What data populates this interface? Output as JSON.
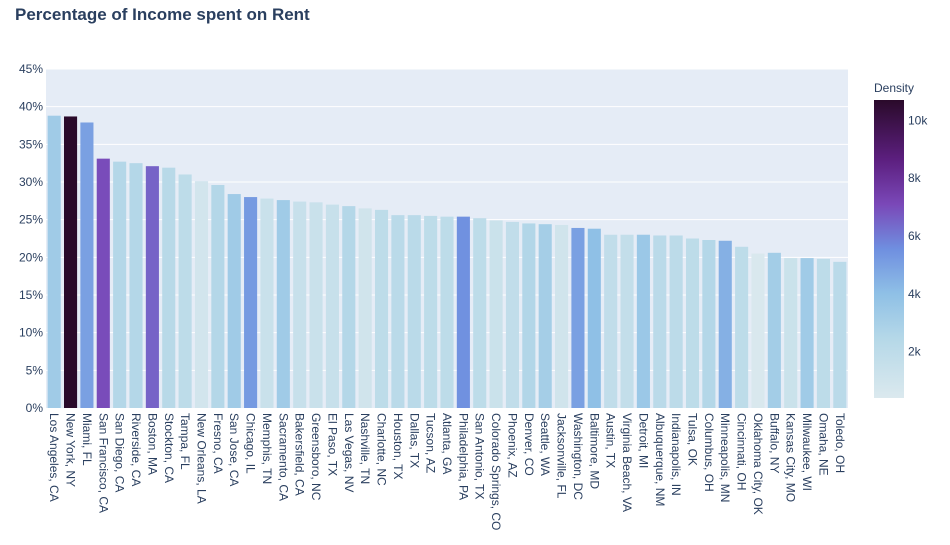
{
  "chart_data": {
    "type": "bar",
    "title": "Percentage of Income spent on Rent",
    "xlabel": "",
    "ylabel": "",
    "ylim": [
      0,
      45
    ],
    "yticks": [
      0,
      5,
      10,
      15,
      20,
      25,
      30,
      35,
      40,
      45
    ],
    "ytick_labels": [
      "0%",
      "5%",
      "10%",
      "15%",
      "20%",
      "25%",
      "30%",
      "35%",
      "40%",
      "45%"
    ],
    "grid": true,
    "legend": "none",
    "colorbar": {
      "title": "Density",
      "range": [
        400,
        10700
      ],
      "ticks": [
        2000,
        4000,
        6000,
        8000,
        10000
      ],
      "tick_labels": [
        "2k",
        "4k",
        "6k",
        "8k",
        "10k"
      ],
      "colorscale": [
        [
          0.0,
          "#dbe9ee"
        ],
        [
          0.2,
          "#b5d8e8"
        ],
        [
          0.35,
          "#8fc0e6"
        ],
        [
          0.5,
          "#6f8fe0"
        ],
        [
          0.65,
          "#7a48b8"
        ],
        [
          0.8,
          "#5c1f7f"
        ],
        [
          1.0,
          "#2a0a2a"
        ]
      ]
    },
    "categories": [
      "Los Angeles, CA",
      "New York, NY",
      "Miami, FL",
      "San Francisco, CA",
      "San Diego, CA",
      "Riverside, CA",
      "Boston, MA",
      "Stockton, CA",
      "Tampa, FL",
      "New Orleans, LA",
      "Fresno, CA",
      "San Jose, CA",
      "Chicago, IL",
      "Memphis, TN",
      "Sacramento, CA",
      "Bakersfield, CA",
      "Greensboro, NC",
      "El Paso, TX",
      "Las Vegas, NV",
      "Nashville, TN",
      "Charlotte, NC",
      "Houston, TX",
      "Dallas, TX",
      "Tucson, AZ",
      "Atlanta, GA",
      "Philadelphia, PA",
      "San Antonio, TX",
      "Colorado Springs, CO",
      "Phoenix, AZ",
      "Denver, CO",
      "Seattle, WA",
      "Jacksonville, FL",
      "Washington, DC",
      "Baltimore, MD",
      "Austin, TX",
      "Virginia Beach, VA",
      "Detroit, MI",
      "Albuquerque, NM",
      "Indianapolis, IN",
      "Tulsa, OK",
      "Columbus, OH",
      "Minneapolis, MN",
      "Cincinnati, OH",
      "Oklahoma City, OK",
      "Buffalo, NY",
      "Kansas City, MO",
      "Milwaukee, WI",
      "Omaha, NE",
      "Toledo, OH"
    ],
    "values": [
      38.8,
      38.7,
      37.9,
      33.1,
      32.7,
      32.5,
      32.1,
      31.9,
      31.0,
      30.1,
      29.6,
      28.4,
      28.0,
      27.8,
      27.6,
      27.4,
      27.3,
      27.0,
      26.8,
      26.5,
      26.3,
      25.6,
      25.6,
      25.5,
      25.4,
      25.4,
      25.2,
      24.9,
      24.7,
      24.5,
      24.4,
      24.3,
      23.9,
      23.8,
      23.0,
      23.0,
      23.0,
      22.9,
      22.9,
      22.5,
      22.3,
      22.2,
      21.4,
      20.5,
      20.6,
      19.9,
      19.9,
      19.8,
      19.4
    ],
    "density": [
      3300,
      10700,
      5000,
      7000,
      2500,
      2500,
      6500,
      2300,
      2000,
      900,
      2500,
      3300,
      5200,
      1400,
      3300,
      1500,
      1400,
      1500,
      2500,
      1000,
      2000,
      2200,
      2200,
      2000,
      2000,
      5500,
      2000,
      1300,
      1800,
      2600,
      3100,
      1000,
      5000,
      4000,
      1800,
      1700,
      3500,
      2200,
      2100,
      2000,
      2500,
      4500,
      2000,
      500,
      3200,
      1300,
      3300,
      2000,
      2200
    ]
  }
}
